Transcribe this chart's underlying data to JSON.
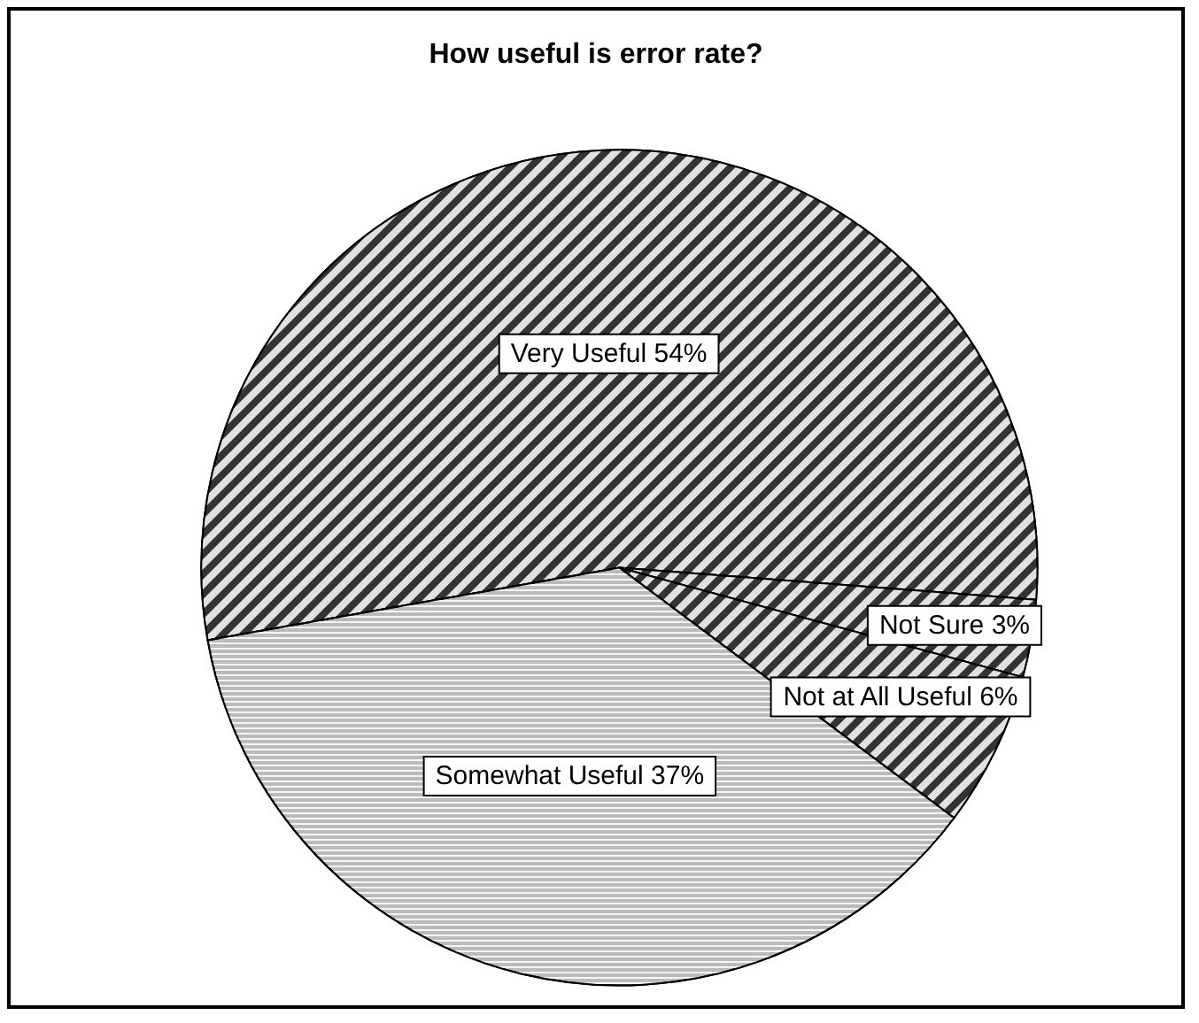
{
  "chart_data": {
    "type": "pie",
    "title": "How useful is error rate?",
    "categories": [
      "Very Useful",
      "Not Sure",
      "Not at All Useful",
      "Somewhat Useful"
    ],
    "values": [
      54,
      3,
      6,
      37
    ],
    "value_labels": [
      "54%",
      "3%",
      "6%",
      "37%"
    ],
    "colors": [
      "#333333",
      "#333333",
      "#333333",
      "#bbbbbb"
    ],
    "legend": false
  }
}
